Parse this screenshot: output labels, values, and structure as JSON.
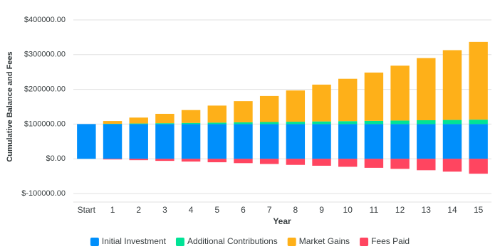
{
  "chart_data": {
    "type": "stacked_bar",
    "x_label": "Year",
    "y_label": "Cumulative Balance and Fees",
    "categories": [
      "Start",
      "1",
      "2",
      "3",
      "4",
      "5",
      "6",
      "7",
      "8",
      "9",
      "10",
      "11",
      "12",
      "13",
      "14",
      "15"
    ],
    "series": [
      {
        "name": "Initial Investment",
        "color": "#008ffb",
        "values": [
          100000,
          100000,
          100000,
          100000,
          100000,
          100000,
          100000,
          100000,
          100000,
          100000,
          100000,
          100000,
          100000,
          100000,
          100000,
          100000
        ]
      },
      {
        "name": "Additional Contributions",
        "color": "#00e396",
        "values": [
          0,
          850,
          1700,
          2550,
          3400,
          4250,
          5100,
          5950,
          6800,
          7650,
          8500,
          9350,
          10200,
          11050,
          11900,
          12750
        ]
      },
      {
        "name": "Market Gains",
        "color": "#feb019",
        "values": [
          0,
          8000,
          17000,
          27000,
          37000,
          49000,
          61000,
          75000,
          90000,
          106000,
          122000,
          139000,
          158000,
          179000,
          201000,
          224000
        ]
      },
      {
        "name": "Fees Paid",
        "color": "#ff4560",
        "values": [
          0,
          -2000,
          -4000,
          -6000,
          -8000,
          -10000,
          -12500,
          -15000,
          -17500,
          -20000,
          -23000,
          -26000,
          -29000,
          -33000,
          -37000,
          -43000
        ]
      }
    ],
    "ylim": [
      -100000,
      400000
    ],
    "yticks": [
      {
        "value": -100000,
        "label": "$-100000.00"
      },
      {
        "value": 0,
        "label": "$0.00"
      },
      {
        "value": 100000,
        "label": "$100000.00"
      },
      {
        "value": 200000,
        "label": "$200000.00"
      },
      {
        "value": 300000,
        "label": "$300000.00"
      },
      {
        "value": 400000,
        "label": "$400000.00"
      }
    ],
    "grid": true,
    "legend": "bottom"
  }
}
